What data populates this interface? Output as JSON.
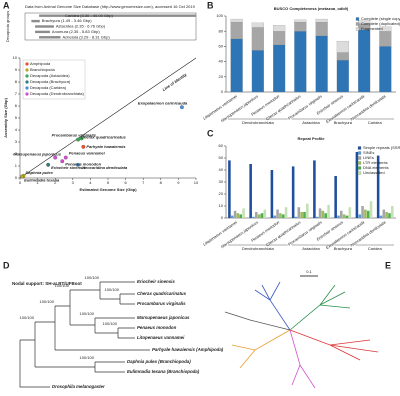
{
  "panels": [
    "A",
    "B",
    "C",
    "D",
    "E"
  ],
  "chart_data": [
    {
      "type": "range",
      "source": "Data from Animal Genome Size Database (http://www.genomesize.com), accessed 16 Oct 2019",
      "y_label": "Decapoda groups",
      "xlim": [
        0,
        40
      ],
      "color": "#8c8c8c",
      "categories": [
        "Caridea (3.30 - 40.00 Gbp)",
        "Brachyura (1.49 - 3.46 Gbp)",
        "Astacidea (2.35 - 6.76 Gbp)",
        "Anomura (2.35 - 5.83 Gbp)",
        "Achelata (3.29 - 8.31 Gbp)"
      ],
      "values": [
        [
          3.3,
          40
        ],
        [
          1.49,
          3.46
        ],
        [
          2.35,
          6.76
        ],
        [
          2.35,
          5.83
        ],
        [
          3.29,
          8.31
        ]
      ]
    },
    {
      "type": "scatter",
      "x_label": "Estimated Genome Size (Gbp)",
      "y_label": "Assembly Size (Gbp)",
      "annotation": "Line of identity",
      "xlim": [
        0,
        10
      ],
      "ylim": [
        0,
        10
      ],
      "xticks": [
        0,
        1,
        2,
        3,
        4,
        5,
        6,
        7,
        8,
        9,
        10
      ],
      "yticks": [
        0,
        1,
        2,
        3,
        4,
        5,
        6,
        7,
        8,
        9,
        10
      ],
      "series": [
        {
          "name": "Amphipoda",
          "color": "#e8552d",
          "x": [
            3.6
          ],
          "values": [
            2.6
          ],
          "labels": [
            "Parhyale hawaiensis"
          ]
        },
        {
          "name": "Branchiopoda",
          "color": "#b5a820",
          "x": [
            0.2,
            0.12
          ],
          "values": [
            0.18,
            0.12
          ],
          "labels": [
            "Daphnia pulex",
            "Eulimnadia texana"
          ]
        },
        {
          "name": "Decapoda (Astacidea)",
          "color": "#3aa655",
          "x": [
            3.5,
            3.3
          ],
          "values": [
            3.3,
            3.2
          ],
          "labels": [
            "Procambarus virginalis",
            "Cherax quadricarinatus"
          ]
        },
        {
          "name": "Decapoda (Brachyura)",
          "color": "#2f7d7d",
          "x": [
            1.6
          ],
          "values": [
            1.1
          ],
          "labels": [
            "Eriocheir sinensis"
          ]
        },
        {
          "name": "Decapoda (Caridea)",
          "color": "#4a90d9",
          "x": [
            9.2,
            3.3
          ],
          "values": [
            5.9,
            1.1
          ],
          "labels": [
            "Exopalaemon carinicauda",
            "Neocaridina denticulata"
          ]
        },
        {
          "name": "Decapoda (Dendrobranchiata)",
          "color": "#d14fd1",
          "x": [
            2.0,
            2.6,
            2.4
          ],
          "values": [
            1.7,
            1.7,
            1.4
          ],
          "labels": [
            "Marsupenaeus japonicus",
            "Penaeus vannamei",
            "Penaeus monodon"
          ]
        }
      ]
    },
    {
      "type": "stacked",
      "title": "BUSCO Completeness (metazoa_odb9)",
      "ylim": [
        0,
        100
      ],
      "yticks": [
        0,
        20,
        40,
        60,
        80,
        100
      ],
      "categories": [
        "Litopenaeus vannamei",
        "Marsupenaeus japonicus",
        "Penaeus monodon",
        "Cherax quadricarinatus",
        "Procambarus virginalis",
        "Eriocheir sinensis",
        "Exopalaemon carinicauda",
        "Neocaridina denticulata"
      ],
      "groups": [
        {
          "name": "Dendrobranchiata",
          "span": 3
        },
        {
          "name": "Astacidea",
          "span": 2
        },
        {
          "name": "Brachyura",
          "span": 1
        },
        {
          "name": "Caridea",
          "span": 2
        }
      ],
      "series": [
        {
          "name": "Complete (single copy)",
          "color": "#2e75b6",
          "values": [
            70,
            55,
            62,
            80,
            74,
            42,
            82,
            60
          ]
        },
        {
          "name": "Complete (duplicated)",
          "color": "#a6a6a6",
          "values": [
            22,
            30,
            18,
            12,
            18,
            10,
            8,
            20
          ]
        },
        {
          "name": "Fragmented",
          "color": "#dcdcdc",
          "values": [
            4,
            6,
            8,
            3,
            4,
            15,
            4,
            6
          ]
        }
      ]
    },
    {
      "type": "grouped",
      "title": "Repeat Profile",
      "ylim": [
        0,
        60
      ],
      "yticks": [
        0,
        10,
        20,
        30,
        40,
        50,
        60
      ],
      "categories": [
        "Litopenaeus vannamei",
        "Marsupenaeus japonicus",
        "Penaeus monodon",
        "Cherax quadricarinatus",
        "Procambarus virginalis",
        "Eriocheir sinensis",
        "Exopalaemon carinicauda",
        "Neocaridina denticulata"
      ],
      "groups": [
        {
          "name": "Dendrobranchiata",
          "span": 3
        },
        {
          "name": "Astacidea",
          "span": 2
        },
        {
          "name": "Brachyura",
          "span": 1
        },
        {
          "name": "Caridea",
          "span": 2
        }
      ],
      "series": [
        {
          "name": "Simple repeats (SSR)",
          "color": "#1f4e9c",
          "values": [
            48,
            45,
            40,
            43,
            48,
            35,
            55,
            52
          ]
        },
        {
          "name": "SINEs",
          "color": "#5b9bd5",
          "values": [
            2,
            1,
            2,
            1,
            1,
            2,
            3,
            2
          ]
        },
        {
          "name": "LINEs",
          "color": "#a5a5a5",
          "values": [
            6,
            5,
            7,
            9,
            8,
            6,
            10,
            7
          ]
        },
        {
          "name": "LTR elements",
          "color": "#9cbb59",
          "values": [
            4,
            3,
            4,
            5,
            6,
            3,
            7,
            5
          ]
        },
        {
          "name": "DNA elements",
          "color": "#4caf50",
          "values": [
            3,
            4,
            3,
            5,
            4,
            2,
            6,
            4
          ]
        },
        {
          "name": "Unclassified",
          "color": "#c5e0b4",
          "values": [
            8,
            7,
            9,
            12,
            11,
            9,
            14,
            10
          ]
        }
      ]
    }
  ],
  "tree": {
    "note": "Nodal support: SH-aLRT/UFBoot",
    "taxa": [
      "Eriocheir sinensis",
      "Cherax quadricarinatus",
      "Procambarus virginalis",
      "Marsupenaeus japonicus",
      "Penaeus monodon",
      "Litopenaeus vannamei",
      "Parhyale hawaiensis (Amphipoda)",
      "Daphnia pulex (Branchiopoda)",
      "Eulimnadia texana (Branchiopoda)",
      "Drosophila melanogaster"
    ],
    "supports": [
      "100/100",
      "100/100",
      "100/100",
      "100/100",
      "100/100",
      "100/100",
      "100/100",
      "100/100"
    ]
  },
  "unrooted": {
    "scale": "0.1"
  }
}
